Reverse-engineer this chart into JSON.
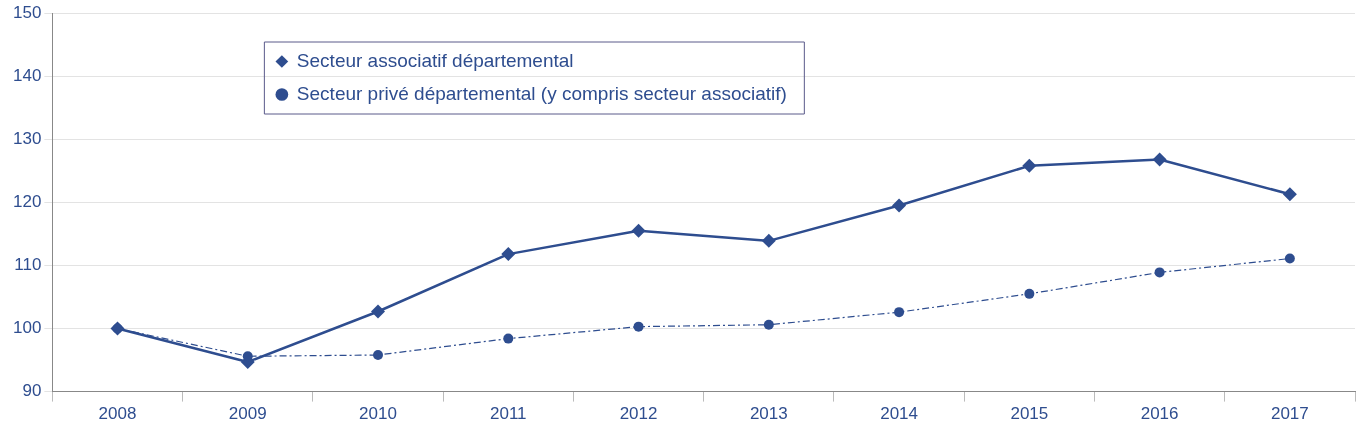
{
  "chart_data": {
    "type": "line",
    "categories": [
      "2008",
      "2009",
      "2010",
      "2011",
      "2012",
      "2013",
      "2014",
      "2015",
      "2016",
      "2017"
    ],
    "series": [
      {
        "name": "Secteur associatif départemental",
        "color": "#2e4d8f",
        "marker": "diamond",
        "line_style": "solid",
        "values": [
          100,
          94.7,
          102.7,
          111.8,
          115.5,
          113.9,
          119.5,
          125.8,
          126.8,
          121.3
        ]
      },
      {
        "name": "Secteur privé départemental (y compris secteur associatif)",
        "color": "#2e4d8f",
        "marker": "circle",
        "line_style": "dashed",
        "values": [
          100,
          95.6,
          95.8,
          98.4,
          100.3,
          100.6,
          102.6,
          105.5,
          108.9,
          111.1
        ]
      }
    ],
    "ylim": [
      90,
      150
    ],
    "yticks": [
      90,
      100,
      110,
      120,
      130,
      140,
      150
    ],
    "grid": "y",
    "legend": "top left"
  }
}
